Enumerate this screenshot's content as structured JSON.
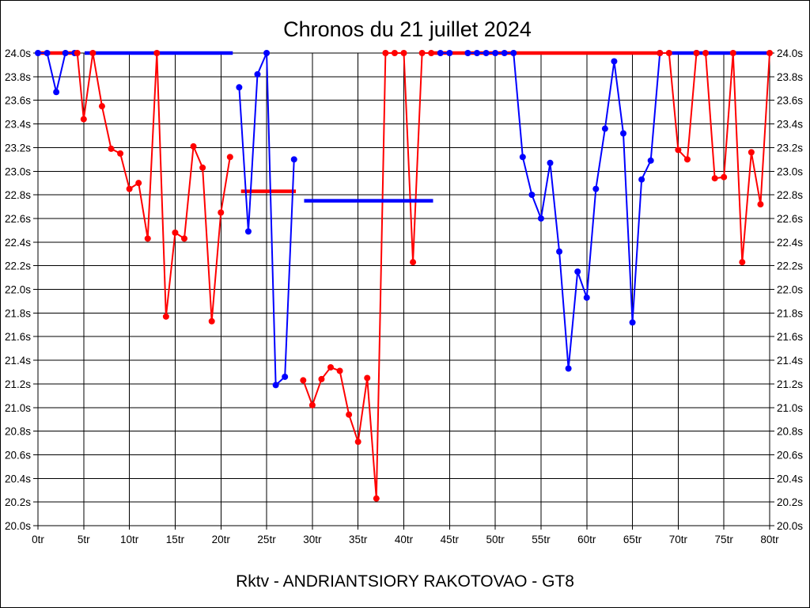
{
  "window": {
    "title": "Chronos du 21 juillet 2024",
    "caption": "Rktv - ANDRIANTSIORY RAKOTOVAO - GT8"
  },
  "chart_data": {
    "type": "line",
    "title": "Chronos du 21 juillet 2024",
    "caption": "Rktv - ANDRIANTSIORY RAKOTOVAO - GT8",
    "grid": true,
    "legend": "none",
    "x_axis": {
      "unit": "tr",
      "min": 0,
      "max": 80,
      "tick_step": 5,
      "tick_labels": [
        "0tr",
        "5tr",
        "10tr",
        "15tr",
        "20tr",
        "25tr",
        "30tr",
        "35tr",
        "40tr",
        "45tr",
        "50tr",
        "55tr",
        "60tr",
        "65tr",
        "70tr",
        "75tr",
        "80tr"
      ]
    },
    "y_axis": {
      "unit": "s",
      "min": 20.0,
      "max": 24.0,
      "tick_step": 0.2,
      "tick_labels": [
        "24.0s",
        "23.8s",
        "23.6s",
        "23.4s",
        "23.2s",
        "23.0s",
        "22.8s",
        "22.6s",
        "22.4s",
        "22.2s",
        "22.0s",
        "21.8s",
        "21.6s",
        "21.4s",
        "21.2s",
        "21.0s",
        "20.8s",
        "20.6s",
        "20.4s",
        "20.2s",
        "20.0s"
      ]
    },
    "series": [
      {
        "name": "series-red",
        "color": "#ff0000",
        "segments": [
          [
            [
              4.3,
              24.0
            ],
            [
              5,
              23.44
            ],
            [
              6,
              24.0
            ],
            [
              7,
              23.55
            ],
            [
              8,
              23.19
            ],
            [
              9,
              23.15
            ],
            [
              10,
              22.85
            ],
            [
              11,
              22.9
            ],
            [
              12,
              22.43
            ],
            [
              13,
              24.0
            ],
            [
              14,
              21.77
            ],
            [
              15,
              22.48
            ],
            [
              16,
              22.43
            ],
            [
              17,
              23.21
            ],
            [
              18,
              23.03
            ],
            [
              19,
              21.73
            ],
            [
              20,
              22.65
            ],
            [
              21,
              23.12
            ]
          ],
          [
            [
              29,
              21.23
            ],
            [
              30,
              21.02
            ],
            [
              31,
              21.24
            ],
            [
              32,
              21.34
            ],
            [
              33,
              21.31
            ],
            [
              34,
              20.94
            ],
            [
              35,
              20.71
            ],
            [
              36,
              21.25
            ],
            [
              37,
              20.23
            ],
            [
              38,
              24.0
            ],
            [
              39,
              24.0
            ],
            [
              40,
              24.0
            ],
            [
              41,
              22.23
            ],
            [
              42,
              24.0
            ],
            [
              43,
              24.0
            ]
          ],
          [
            [
              68,
              24.0
            ],
            [
              69,
              24.0
            ],
            [
              70,
              23.18
            ],
            [
              71,
              23.1
            ],
            [
              72,
              24.0
            ],
            [
              73,
              24.0
            ],
            [
              74,
              22.94
            ],
            [
              75,
              22.95
            ],
            [
              76,
              24.0
            ],
            [
              77,
              22.23
            ],
            [
              78,
              23.16
            ],
            [
              79,
              22.72
            ],
            [
              80,
              24.0
            ]
          ]
        ],
        "bars": [
          [
            0,
            4.3,
            24.0
          ],
          [
            22.2,
            28.2,
            22.83
          ],
          [
            43,
            68.2,
            24.0
          ]
        ]
      },
      {
        "name": "series-blue",
        "color": "#0000ff",
        "segments": [
          [
            [
              0,
              24.0
            ],
            [
              1,
              24.0
            ],
            [
              2,
              23.67
            ],
            [
              3,
              24.0
            ],
            [
              4,
              24.0
            ]
          ],
          [
            [
              22,
              23.71
            ],
            [
              23,
              22.49
            ],
            [
              24,
              23.82
            ],
            [
              25,
              24.0
            ],
            [
              26,
              21.19
            ],
            [
              27,
              21.26
            ],
            [
              28,
              23.1
            ]
          ],
          [
            [
              44,
              24.0
            ],
            [
              45,
              24.0
            ]
          ],
          [
            [
              47,
              24.0
            ],
            [
              48,
              24.0
            ],
            [
              49,
              24.0
            ],
            [
              50,
              24.0
            ],
            [
              51,
              24.0
            ],
            [
              52,
              24.0
            ],
            [
              53,
              23.12
            ],
            [
              54,
              22.8
            ],
            [
              55,
              22.6
            ],
            [
              56,
              23.07
            ],
            [
              57,
              22.32
            ],
            [
              58,
              21.33
            ],
            [
              59,
              22.15
            ],
            [
              60,
              21.93
            ],
            [
              61,
              22.85
            ],
            [
              62,
              23.36
            ],
            [
              63,
              23.93
            ],
            [
              64,
              23.32
            ],
            [
              65,
              21.72
            ],
            [
              66,
              22.93
            ],
            [
              67,
              23.09
            ],
            [
              68,
              24.0
            ]
          ],
          [
            [
              72,
              24.0
            ]
          ]
        ],
        "bars": [
          [
            5.1,
            21.3,
            24.0
          ],
          [
            29.1,
            43.2,
            22.75
          ],
          [
            69.1,
            80,
            24.0
          ]
        ]
      }
    ]
  }
}
